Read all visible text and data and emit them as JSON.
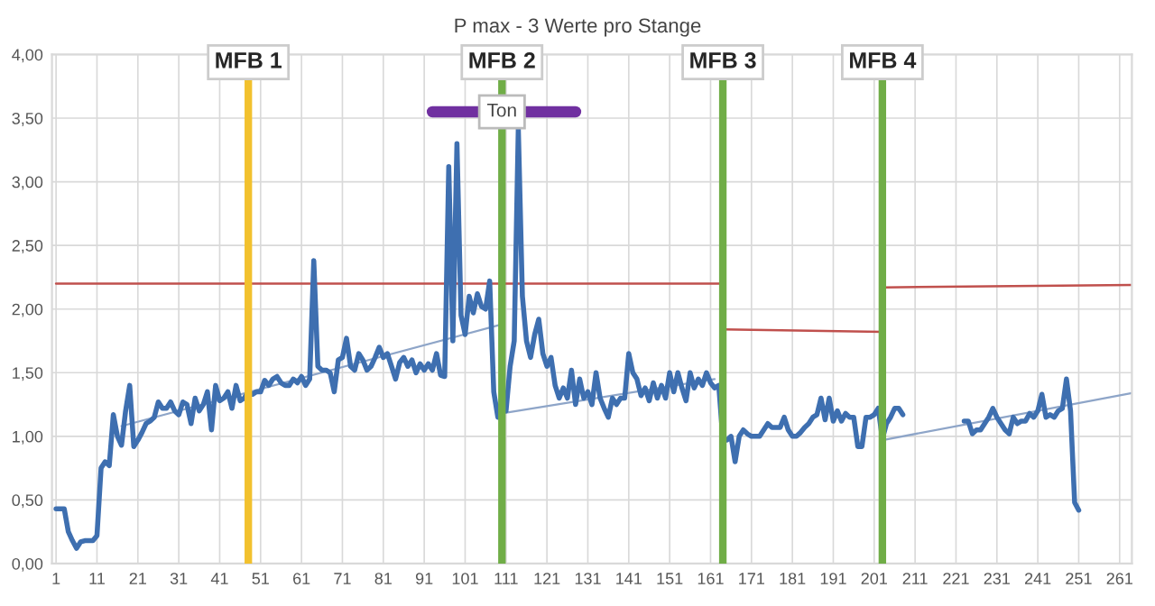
{
  "chart_data": {
    "type": "line",
    "title": "P max - 3 Werte pro Stange",
    "series": [
      {
        "color": "#3e6fb0",
        "x": [
          1,
          2,
          3,
          4,
          5,
          6,
          7,
          8,
          9,
          10,
          11,
          12,
          13,
          14,
          15,
          16,
          17,
          18,
          19,
          20,
          21,
          22,
          23,
          24,
          25,
          26,
          27,
          28,
          29,
          30,
          31,
          32,
          33,
          34,
          35,
          36,
          37,
          38,
          39,
          40,
          41,
          42,
          43,
          44,
          45,
          46,
          47,
          48,
          49,
          50,
          51,
          52,
          53,
          54,
          55,
          56,
          57,
          58,
          59,
          60,
          61,
          62,
          63,
          64,
          65,
          66,
          67,
          68,
          69,
          70,
          71,
          72,
          73,
          74,
          75,
          76,
          77,
          78,
          79,
          80,
          81,
          82,
          83,
          84,
          85,
          86,
          87,
          88,
          89,
          90,
          91,
          92,
          93,
          94,
          95,
          96,
          97,
          98,
          99,
          100,
          101,
          102,
          103,
          104,
          105,
          106,
          107,
          108,
          109,
          110,
          111,
          112,
          113,
          114,
          115,
          116,
          117,
          118,
          119,
          120,
          121,
          122,
          123,
          124,
          125,
          126,
          127,
          128,
          129,
          130,
          131,
          132,
          133,
          134,
          135,
          136,
          137,
          138,
          139,
          140,
          141,
          142,
          143,
          144,
          145,
          146,
          147,
          148,
          149,
          150,
          151,
          152,
          153,
          154,
          155,
          156,
          157,
          158,
          159,
          160,
          161,
          162,
          163,
          164,
          165,
          166,
          167,
          168,
          169,
          170,
          171,
          172,
          173,
          174,
          175,
          176,
          177,
          178,
          179,
          180,
          181,
          182,
          183,
          184,
          185,
          186,
          187,
          188,
          189,
          190,
          191,
          192,
          193,
          194,
          195,
          196,
          197,
          198,
          199,
          200,
          201,
          202,
          203,
          204,
          205,
          206,
          207,
          208,
          209,
          210,
          211,
          212,
          213,
          214,
          215,
          216,
          217,
          218,
          219,
          220,
          221,
          222,
          223,
          224,
          225,
          226,
          227,
          228,
          229,
          230,
          231,
          232,
          233,
          234,
          235,
          236,
          237,
          238,
          239,
          240,
          241,
          242,
          243,
          244,
          245,
          246,
          247,
          248,
          249,
          250,
          251
        ],
        "values": [
          0.43,
          0.43,
          0.43,
          0.25,
          0.18,
          0.12,
          0.17,
          0.18,
          0.18,
          0.18,
          0.22,
          0.75,
          0.8,
          0.77,
          1.17,
          1.0,
          0.93,
          1.2,
          1.4,
          0.92,
          0.97,
          1.03,
          1.1,
          1.12,
          1.15,
          1.27,
          1.22,
          1.22,
          1.27,
          1.2,
          1.17,
          1.27,
          1.25,
          1.1,
          1.3,
          1.2,
          1.25,
          1.35,
          1.05,
          1.4,
          1.28,
          1.3,
          1.35,
          1.22,
          1.4,
          1.28,
          1.3,
          1.35,
          1.33,
          1.35,
          1.35,
          1.44,
          1.4,
          1.45,
          1.47,
          1.42,
          1.4,
          1.4,
          1.45,
          1.42,
          1.47,
          1.4,
          1.45,
          2.38,
          1.55,
          1.52,
          1.52,
          1.5,
          1.35,
          1.6,
          1.62,
          1.77,
          1.55,
          1.52,
          1.65,
          1.6,
          1.52,
          1.55,
          1.62,
          1.7,
          1.62,
          1.65,
          1.55,
          1.45,
          1.58,
          1.62,
          1.55,
          1.6,
          1.5,
          1.57,
          1.52,
          1.57,
          1.52,
          1.65,
          1.48,
          1.47,
          3.12,
          1.75,
          3.3,
          1.95,
          1.8,
          2.1,
          1.97,
          2.12,
          2.02,
          2.0,
          2.22,
          1.35,
          1.15,
          1.28,
          1.2,
          1.55,
          1.75,
          3.42,
          2.1,
          1.75,
          1.62,
          1.8,
          1.92,
          1.65,
          1.55,
          1.62,
          1.4,
          1.3,
          1.38,
          1.3,
          1.52,
          1.25,
          1.45,
          1.3,
          1.35,
          1.25,
          1.5,
          1.3,
          1.22,
          1.15,
          1.3,
          1.25,
          1.3,
          1.3,
          1.65,
          1.5,
          1.45,
          1.32,
          1.38,
          1.28,
          1.42,
          1.3,
          1.4,
          1.3,
          1.5,
          1.35,
          1.5,
          1.38,
          1.28,
          1.5,
          1.38,
          1.45,
          1.4,
          1.5,
          1.42,
          1.38,
          1.4,
          0.98,
          0.97,
          1.0,
          0.8,
          1.0,
          1.05,
          1.02,
          1.0,
          1.0,
          1.0,
          1.05,
          1.1,
          1.07,
          1.07,
          1.07,
          1.15,
          1.05,
          1.0,
          1.0,
          1.03,
          1.07,
          1.1,
          1.15,
          1.17,
          1.3,
          1.13,
          1.3,
          1.12,
          1.2,
          1.12,
          1.18,
          1.15,
          1.15,
          0.92,
          0.92,
          1.15,
          1.15,
          1.17,
          1.22,
          0.98,
          1.1,
          1.15,
          1.22,
          1.22,
          1.17,
          null,
          null,
          null,
          null,
          null,
          null,
          null,
          null,
          null,
          null,
          null,
          null,
          null,
          null,
          1.12,
          1.12,
          1.02,
          1.05,
          1.05,
          1.1,
          1.15,
          1.22,
          1.15,
          1.1,
          1.05,
          1.02,
          1.15,
          1.1,
          1.12,
          1.12,
          1.18,
          1.15,
          1.2,
          1.33,
          1.15,
          1.17,
          1.15,
          1.2,
          1.22,
          1.45,
          1.2,
          0.48,
          0.42
        ]
      },
      {
        "color": "#c0504d",
        "x": [
          1,
          164
        ],
        "values": [
          2.2,
          2.2
        ]
      },
      {
        "color": "#c0504d",
        "x": [
          164,
          203
        ],
        "values": [
          1.84,
          1.82
        ]
      },
      {
        "color": "#c0504d",
        "x": [
          203,
          264
        ],
        "values": [
          2.17,
          2.19
        ]
      },
      {
        "color": "#8ea5c8",
        "x": [
          17,
          110
        ],
        "values": [
          1.08,
          1.88
        ]
      },
      {
        "color": "#8ea5c8",
        "x": [
          110,
          162
        ],
        "values": [
          1.18,
          1.45
        ]
      },
      {
        "color": "#8ea5c8",
        "x": [
          203,
          264
        ],
        "values": [
          0.97,
          1.34
        ]
      },
      {
        "color": "#7030a0",
        "x": [
          93,
          128
        ],
        "values": [
          3.55,
          3.55
        ]
      }
    ],
    "ref_lines": [
      {
        "axis": "x",
        "value": 48,
        "label": "MFB 1",
        "color": "#f2c12e"
      },
      {
        "axis": "x",
        "value": 110,
        "label": "MFB 2",
        "color": "#70ad47"
      },
      {
        "axis": "x",
        "value": 164,
        "label": "MFB 3",
        "color": "#70ad47"
      },
      {
        "axis": "x",
        "value": 203,
        "label": "MFB 4",
        "color": "#70ad47"
      }
    ],
    "annotations": [
      {
        "text": "Ton",
        "x": 110,
        "y": 3.55
      }
    ],
    "xlim": [
      0,
      264
    ],
    "xticks": [
      1,
      11,
      21,
      31,
      41,
      51,
      61,
      71,
      81,
      91,
      101,
      111,
      121,
      131,
      141,
      151,
      161,
      171,
      181,
      191,
      201,
      211,
      221,
      231,
      241,
      251,
      261
    ],
    "ylim": [
      0,
      4
    ],
    "yticks": [
      {
        "value": 0,
        "label": "0,00"
      },
      {
        "value": 0.5,
        "label": "0,50"
      },
      {
        "value": 1,
        "label": "1,00"
      },
      {
        "value": 1.5,
        "label": "1,50"
      },
      {
        "value": 2,
        "label": "2,00"
      },
      {
        "value": 2.5,
        "label": "2,50"
      },
      {
        "value": 3,
        "label": "3,00"
      },
      {
        "value": 3.5,
        "label": "3,50"
      },
      {
        "value": 4,
        "label": "4,00"
      }
    ],
    "grid": true,
    "legend": false,
    "marker": "none",
    "line_style": "solid"
  }
}
